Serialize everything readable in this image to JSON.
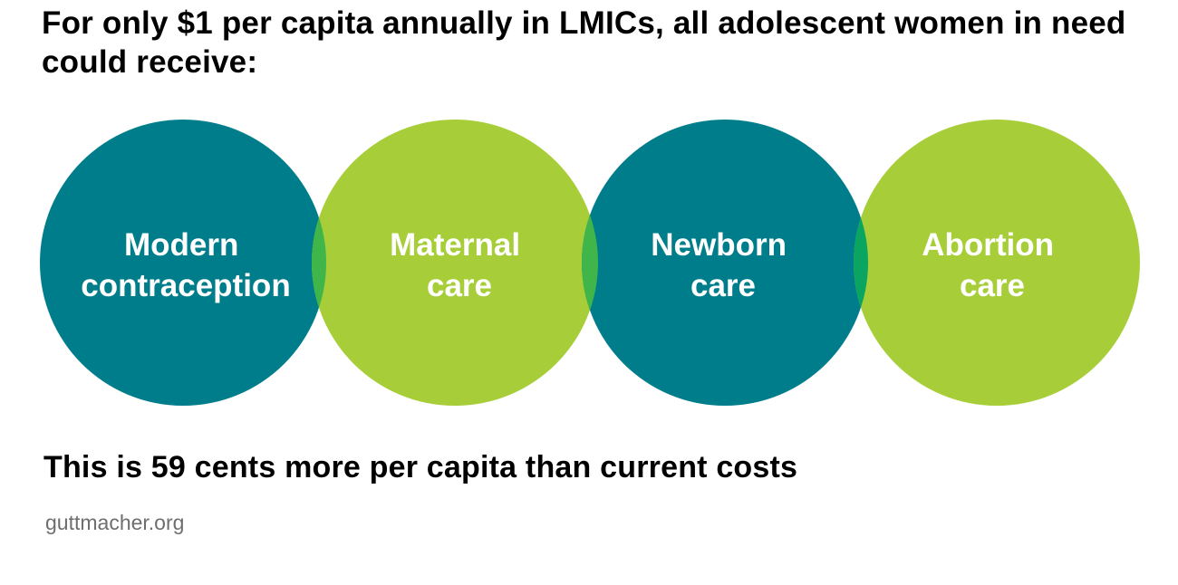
{
  "headline": "For only $1 per capita annually in LMICs, all adolescent women in need could receive:",
  "services": [
    {
      "line1": "Modern",
      "line2": "contraception",
      "color": "#007d8b"
    },
    {
      "line1": "Maternal",
      "line2": "care",
      "color": "#a7ce39"
    },
    {
      "line1": "Newborn",
      "line2": "care",
      "color": "#007d8b"
    },
    {
      "line1": "Abortion",
      "line2": "care",
      "color": "#a7ce39"
    }
  ],
  "overlap_colors": [
    "#3fb54a",
    "#3fb54a",
    "#0aa561"
  ],
  "footnote": "This is 59 cents more per capita than current costs",
  "source": "guttmacher.org"
}
